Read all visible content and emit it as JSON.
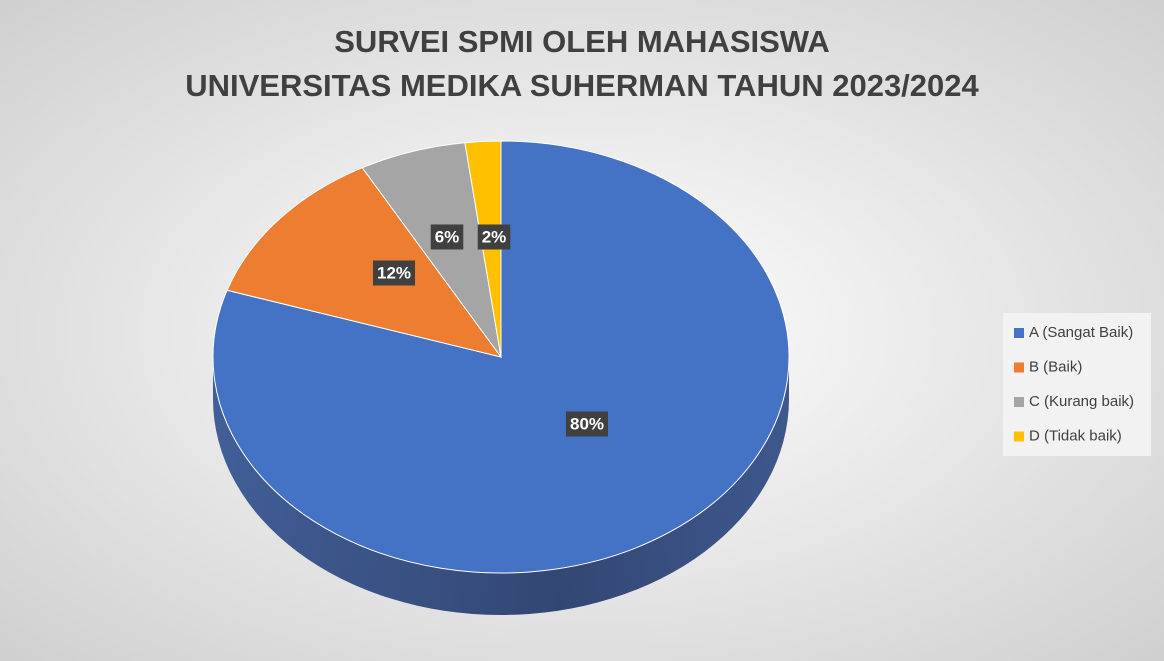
{
  "chart_data": {
    "type": "pie",
    "title": [
      "SURVEI SPMI OLEH MAHASISWA",
      "UNIVERSITAS MEDIKA SUHERMAN  TAHUN 2023/2024"
    ],
    "categories": [
      "A (Sangat Baik)",
      "B (Baik)",
      "C (Kurang baik)",
      "D (Tidak baik)"
    ],
    "values": [
      80,
      12,
      6,
      2
    ],
    "value_labels": [
      "80%",
      "12%",
      "6%",
      "2%"
    ],
    "colors": [
      "#4472c4",
      "#ed7d31",
      "#a5a5a5",
      "#ffc000"
    ],
    "legend": "right"
  }
}
